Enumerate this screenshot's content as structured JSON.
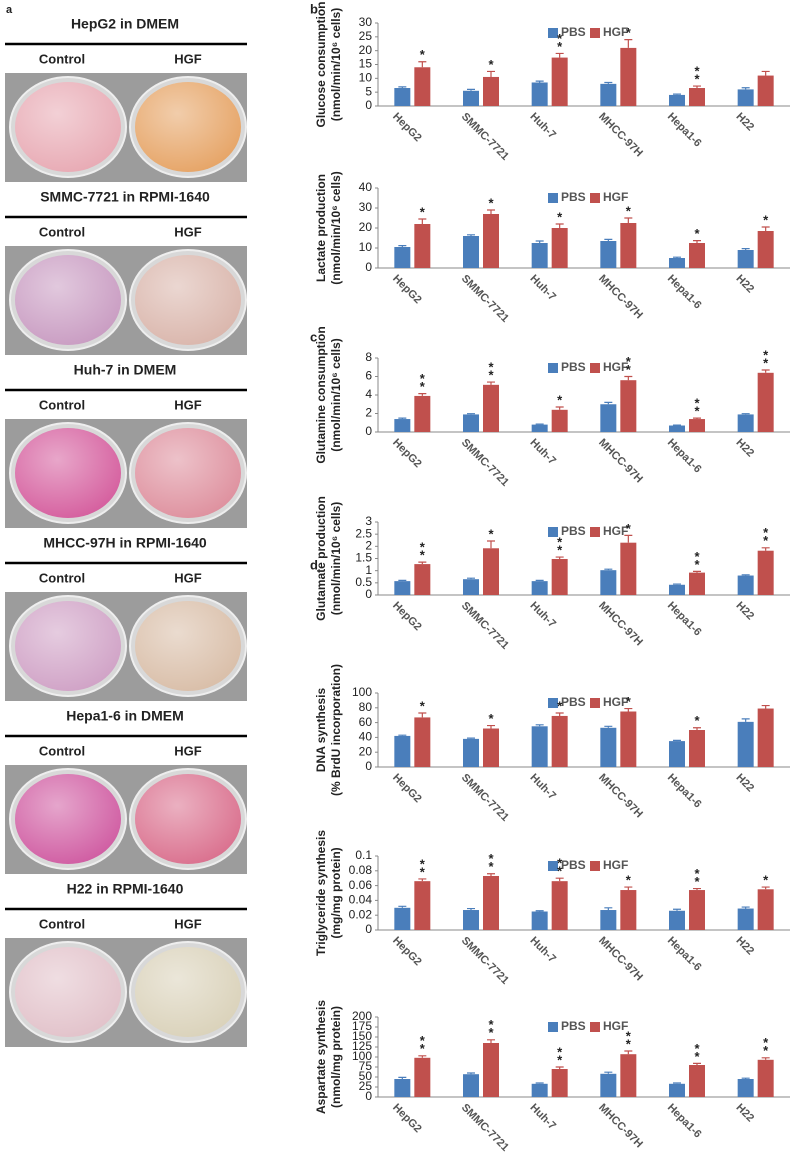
{
  "photo_panel": {
    "label": "a",
    "blocks": [
      {
        "title": "HepG2  in  DMEM",
        "columns": [
          "Control",
          "HGF"
        ]
      },
      {
        "title": "SMMC-7721  in  RPMI-1640",
        "columns": [
          "Control",
          "HGF"
        ]
      },
      {
        "title": "Huh-7  in  DMEM",
        "columns": [
          "Control",
          "HGF"
        ]
      },
      {
        "title": "MHCC-97H  in  RPMI-1640",
        "columns": [
          "Control",
          "HGF"
        ]
      },
      {
        "title": "Hepa1-6  in  DMEM",
        "columns": [
          "Control",
          "HGF"
        ]
      },
      {
        "title": "H22  in  RPMI-1640",
        "columns": [
          "Control",
          "HGF"
        ]
      }
    ]
  },
  "chart_data": [
    {
      "type": "bar",
      "panel_label": "b",
      "y_label": [
        "Glucose consumption",
        "(nmol/min/10⁶ cells)"
      ],
      "categories": [
        "HepG2",
        "SMMC-7721",
        "Huh-7",
        "MHCC-97H",
        "Hepa1-6",
        "H22"
      ],
      "series": [
        {
          "name": "PBS",
          "color": "#4a7ebb",
          "values": [
            6.5,
            5.5,
            8.5,
            8,
            4,
            6
          ],
          "errors": [
            0.4,
            0.5,
            0.5,
            0.5,
            0.3,
            0.6
          ]
        },
        {
          "name": "HGF",
          "color": "#c0504d",
          "values": [
            14,
            10.5,
            17.5,
            21,
            6.5,
            11
          ],
          "errors": [
            2,
            2,
            1.5,
            3,
            0.7,
            1.5
          ],
          "significance": [
            [
              "*"
            ],
            [
              "*"
            ],
            [
              "*",
              "*"
            ],
            [
              "*"
            ],
            [
              "*",
              "*"
            ],
            []
          ]
        }
      ],
      "ylim": [
        0,
        30
      ],
      "yticks": [
        0,
        5,
        10,
        15,
        20,
        25,
        30
      ]
    },
    {
      "type": "bar",
      "y_label": [
        "Lactate production",
        "(nmol/min/10⁶ cells)"
      ],
      "categories": [
        "HepG2",
        "SMMC-7721",
        "Huh-7",
        "MHCC-97H",
        "Hepa1-6",
        "H22"
      ],
      "series": [
        {
          "name": "PBS",
          "color": "#4a7ebb",
          "values": [
            10.5,
            16,
            12.5,
            13.5,
            5,
            9
          ],
          "errors": [
            0.7,
            0.6,
            1,
            0.8,
            0.4,
            0.7
          ]
        },
        {
          "name": "HGF",
          "color": "#c0504d",
          "values": [
            22,
            27,
            20,
            22.5,
            12.5,
            18.5
          ],
          "errors": [
            2.5,
            2,
            2,
            2.5,
            1.2,
            2
          ],
          "significance": [
            [
              "*"
            ],
            [
              "*"
            ],
            [
              "*"
            ],
            [
              "*"
            ],
            [
              "*"
            ],
            [
              "*"
            ]
          ]
        }
      ],
      "ylim": [
        0,
        40
      ],
      "yticks": [
        0,
        10,
        20,
        30,
        40
      ]
    },
    {
      "type": "bar",
      "panel_label": "c",
      "y_label": [
        "Glutamine consumption",
        "(nmol/min/10⁶ cells)"
      ],
      "categories": [
        "HepG2",
        "SMMC-7721",
        "Huh-7",
        "MHCC-97H",
        "Hepa1-6",
        "H22"
      ],
      "series": [
        {
          "name": "PBS",
          "color": "#4a7ebb",
          "values": [
            1.4,
            1.9,
            0.8,
            3,
            0.7,
            1.9
          ],
          "errors": [
            0.1,
            0.08,
            0.06,
            0.2,
            0.05,
            0.08
          ]
        },
        {
          "name": "HGF",
          "color": "#c0504d",
          "values": [
            3.9,
            5.1,
            2.4,
            5.6,
            1.4,
            6.4
          ],
          "errors": [
            0.25,
            0.3,
            0.3,
            0.4,
            0.1,
            0.3
          ],
          "significance": [
            [
              "*",
              "*"
            ],
            [
              "*",
              "*"
            ],
            [
              "*"
            ],
            [
              "*",
              "*"
            ],
            [
              "*",
              "*"
            ],
            [
              "*",
              "*"
            ]
          ]
        }
      ],
      "ylim": [
        0,
        8
      ],
      "yticks": [
        0,
        2,
        4,
        6,
        8
      ]
    },
    {
      "type": "bar",
      "y_label": [
        "Glutamate production",
        "(nmol/min/10⁶ cells)"
      ],
      "categories": [
        "HepG2",
        "SMMC-7721",
        "Huh-7",
        "MHCC-97H",
        "Hepa1-6",
        "H22"
      ],
      "series": [
        {
          "name": "PBS",
          "color": "#4a7ebb",
          "values": [
            0.57,
            0.65,
            0.57,
            1.02,
            0.42,
            0.8
          ],
          "errors": [
            0.03,
            0.04,
            0.03,
            0.04,
            0.03,
            0.03
          ]
        },
        {
          "name": "HGF",
          "color": "#c0504d",
          "values": [
            1.27,
            1.92,
            1.48,
            2.15,
            0.92,
            1.82
          ],
          "errors": [
            0.08,
            0.3,
            0.08,
            0.3,
            0.05,
            0.12
          ],
          "significance": [
            [
              "*",
              "*"
            ],
            [
              "*"
            ],
            [
              "*",
              "*"
            ],
            [
              "*"
            ],
            [
              "*",
              "*"
            ],
            [
              "*",
              "*"
            ]
          ]
        }
      ],
      "ylim": [
        0,
        3
      ],
      "yticks": [
        0,
        0.5,
        1,
        1.5,
        2,
        2.5,
        3
      ]
    },
    {
      "type": "bar",
      "panel_label": "d",
      "y_label": [
        "DNA synthesis",
        "(% BrdU incorporation)"
      ],
      "categories": [
        "HepG2",
        "SMMC-7721",
        "Huh-7",
        "MHCC-97H",
        "Hepa1-6",
        "H22"
      ],
      "series": [
        {
          "name": "PBS",
          "color": "#4a7ebb",
          "values": [
            42,
            38,
            55,
            53,
            35,
            61
          ],
          "errors": [
            1,
            1,
            2,
            2,
            1,
            4
          ]
        },
        {
          "name": "HGF",
          "color": "#c0504d",
          "values": [
            67,
            52,
            69,
            75,
            50,
            79
          ],
          "errors": [
            6,
            4,
            4,
            4,
            3,
            4
          ],
          "significance": [
            [
              "*"
            ],
            [
              "*"
            ],
            [
              "*"
            ],
            [
              "*"
            ],
            [
              "*"
            ],
            []
          ]
        }
      ],
      "ylim": [
        0,
        100
      ],
      "yticks": [
        0,
        20,
        40,
        60,
        80,
        100
      ]
    },
    {
      "type": "bar",
      "y_label": [
        "Triglyceride synthesis",
        "(mg/mg protein)"
      ],
      "categories": [
        "HepG2",
        "SMMC-7721",
        "Huh-7",
        "MHCC-97H",
        "Hepa1-6",
        "H22"
      ],
      "series": [
        {
          "name": "PBS",
          "color": "#4a7ebb",
          "values": [
            0.03,
            0.027,
            0.025,
            0.027,
            0.026,
            0.029
          ],
          "errors": [
            0.002,
            0.002,
            0.001,
            0.003,
            0.002,
            0.002
          ]
        },
        {
          "name": "HGF",
          "color": "#c0504d",
          "values": [
            0.066,
            0.073,
            0.066,
            0.054,
            0.054,
            0.055
          ],
          "errors": [
            0.003,
            0.003,
            0.004,
            0.004,
            0.002,
            0.003
          ],
          "significance": [
            [
              "*",
              "*"
            ],
            [
              "*",
              "*"
            ],
            [
              "*",
              "*"
            ],
            [
              "*"
            ],
            [
              "*",
              "*"
            ],
            [
              "*"
            ]
          ]
        }
      ],
      "ylim": [
        0,
        0.1
      ],
      "yticks": [
        0,
        0.02,
        0.04,
        0.06,
        0.08,
        0.1
      ]
    },
    {
      "type": "bar",
      "y_label": [
        "Aspartate synthesis",
        "(nmol/mg protein)"
      ],
      "categories": [
        "HepG2",
        "SMMC-7721",
        "Huh-7",
        "MHCC-97H",
        "Hepa1-6",
        "H22"
      ],
      "series": [
        {
          "name": "PBS",
          "color": "#4a7ebb",
          "values": [
            45,
            57,
            33,
            58,
            33,
            45
          ],
          "errors": [
            4,
            3,
            2,
            4,
            2,
            2
          ]
        },
        {
          "name": "HGF",
          "color": "#c0504d",
          "values": [
            98,
            135,
            70,
            107,
            80,
            93
          ],
          "errors": [
            5,
            8,
            5,
            8,
            4,
            5
          ],
          "significance": [
            [
              "*",
              "*"
            ],
            [
              "*",
              "*"
            ],
            [
              "*",
              "*"
            ],
            [
              "*",
              "*"
            ],
            [
              "*",
              "*"
            ],
            [
              "*",
              "*"
            ]
          ]
        }
      ],
      "ylim": [
        0,
        200
      ],
      "yticks": [
        0,
        25,
        50,
        75,
        100,
        125,
        150,
        175,
        200
      ]
    }
  ]
}
